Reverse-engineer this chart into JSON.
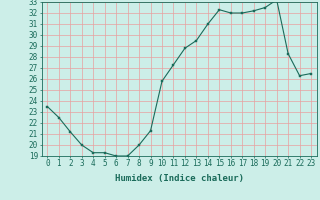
{
  "x": [
    0,
    1,
    2,
    3,
    4,
    5,
    6,
    7,
    8,
    9,
    10,
    11,
    12,
    13,
    14,
    15,
    16,
    17,
    18,
    19,
    20,
    21,
    22,
    23
  ],
  "y": [
    23.5,
    22.5,
    21.2,
    20.0,
    19.3,
    19.3,
    19.0,
    19.0,
    20.0,
    21.3,
    25.8,
    27.3,
    28.8,
    29.5,
    31.0,
    32.3,
    32.0,
    32.0,
    32.2,
    32.5,
    33.2,
    28.3,
    26.3,
    26.5
  ],
  "xlabel": "Humidex (Indice chaleur)",
  "ylim": [
    19,
    33
  ],
  "xlim": [
    -0.5,
    23.5
  ],
  "bg_color": "#cceee8",
  "grid_color": "#aaddcc",
  "line_color": "#1a6b5a",
  "marker_color": "#1a6b5a",
  "yticks": [
    19,
    20,
    21,
    22,
    23,
    24,
    25,
    26,
    27,
    28,
    29,
    30,
    31,
    32,
    33
  ],
  "xticks": [
    0,
    1,
    2,
    3,
    4,
    5,
    6,
    7,
    8,
    9,
    10,
    11,
    12,
    13,
    14,
    15,
    16,
    17,
    18,
    19,
    20,
    21,
    22,
    23
  ],
  "tick_fontsize": 5.5,
  "xlabel_fontsize": 6.5
}
